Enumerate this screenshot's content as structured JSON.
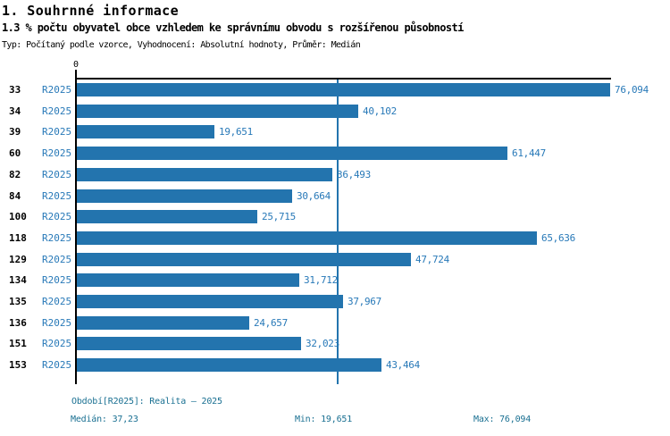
{
  "header": {
    "title": "1. Souhrnné informace",
    "subtitle": "1.3 % počtu obyvatel obce vzhledem ke správnímu obvodu s rozšířenou působností",
    "meta": "Typ: Počítaný podle vzorce, Vyhodnocení: Absolutní hodnoty, Průměr: Medián"
  },
  "chart_data": {
    "type": "bar",
    "orientation": "horizontal",
    "title": "",
    "xlabel": "",
    "ylabel": "",
    "xlim": [
      0,
      76094
    ],
    "x_tick_labels": [
      "0"
    ],
    "grid": false,
    "legend": "none",
    "series_name": "R2025",
    "categories": [
      "33",
      "34",
      "39",
      "60",
      "82",
      "84",
      "100",
      "118",
      "129",
      "134",
      "135",
      "136",
      "151",
      "153"
    ],
    "values": [
      76094,
      40102,
      19651,
      61447,
      36493,
      30664,
      25715,
      65636,
      47724,
      31712,
      37967,
      24657,
      32023,
      43464
    ],
    "value_labels": [
      "76,094",
      "40,102",
      "19,651",
      "61,447",
      "36,493",
      "30,664",
      "25,715",
      "65,636",
      "47,724",
      "31,712",
      "37,967",
      "24,657",
      "32,023",
      "43,464"
    ],
    "median_reference_line": 37230,
    "bar_color": "#2374AE",
    "median_line_color": "#2374AE"
  },
  "footer": {
    "period": "Období[R2025]: Realita – 2025",
    "median": "Medián: 37,23",
    "min": "Min: 19,651",
    "max": "Max: 76,094"
  },
  "colors": {
    "bar_blue": "#2374AE",
    "label_blue": "#2879B8",
    "footer_teal": "#1A7092",
    "axis_black": "#000000",
    "background": "#FFFFFF"
  }
}
